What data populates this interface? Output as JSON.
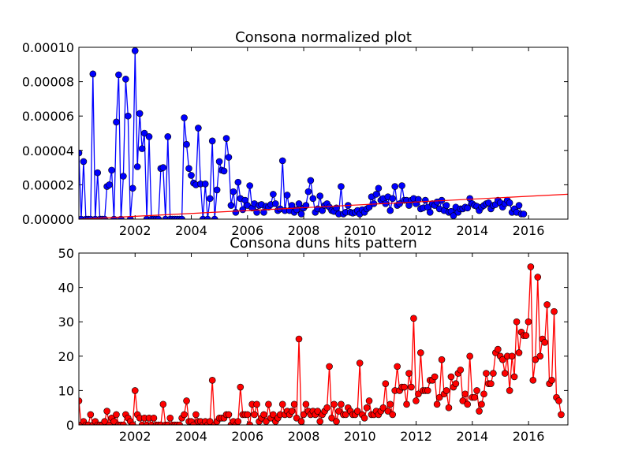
{
  "chart_data": [
    {
      "type": "line",
      "title": "Consona normalized plot",
      "xlabel": "",
      "ylabel": "",
      "xlim": [
        2000.0,
        2017.4
      ],
      "ylim": [
        0,
        0.0001
      ],
      "xticks": [
        2002,
        2004,
        2006,
        2008,
        2010,
        2012,
        2014,
        2016
      ],
      "x_tick_labels": [
        "2002",
        "2004",
        "2006",
        "2008",
        "2010",
        "2012",
        "2014",
        "2016"
      ],
      "yticks": [
        0,
        2e-05,
        4e-05,
        6e-05,
        8e-05,
        0.0001
      ],
      "y_tick_labels": [
        "0.00000",
        "0.00002",
        "0.00004",
        "0.00006",
        "0.00008",
        "0.00010"
      ],
      "series": [
        {
          "color": "#0000ff",
          "marker": "circle",
          "x_start": 2000.0,
          "step": 0.0833,
          "values": [
            3.85e-05,
            0,
            3.35e-05,
            0,
            0,
            0,
            8.45e-05,
            0,
            2.7e-05,
            0,
            0,
            0,
            1.9e-05,
            2e-05,
            2.85e-05,
            0,
            5.65e-05,
            8.4e-05,
            0,
            2.5e-05,
            8.15e-05,
            6e-05,
            0,
            1.8e-05,
            9.8e-05,
            3.05e-05,
            6.15e-05,
            4.1e-05,
            5e-05,
            0,
            4.8e-05,
            0,
            0,
            0,
            0,
            2.95e-05,
            3e-05,
            0,
            4.8e-05,
            0,
            0,
            0,
            0,
            0,
            0,
            5.9e-05,
            4.35e-05,
            2.95e-05,
            2.55e-05,
            2.1e-05,
            2e-05,
            5.3e-05,
            2.05e-05,
            0,
            2.05e-05,
            0,
            1.2e-05,
            4.55e-05,
            0,
            1.7e-05,
            3.35e-05,
            2.85e-05,
            2.8e-05,
            4.7e-05,
            3.6e-05,
            8e-06,
            1.6e-05,
            4e-06,
            2.15e-05,
            1.2e-05,
            5.5e-06,
            1.1e-05,
            8e-06,
            1.95e-05,
            6.5e-06,
            9e-06,
            4e-06,
            8e-06,
            8.5e-06,
            4e-06,
            7.5e-06,
            7e-06,
            8.5e-06,
            1.45e-05,
            9e-06,
            5e-06,
            6e-06,
            3.4e-05,
            5e-06,
            1.4e-05,
            5e-06,
            8e-06,
            4e-06,
            5.5e-06,
            9e-06,
            3e-06,
            6.5e-06,
            8e-06,
            1.6e-05,
            2.25e-05,
            1.2e-05,
            4e-06,
            6e-06,
            1.35e-05,
            5e-06,
            8e-06,
            9e-06,
            7e-06,
            5e-06,
            4.5e-06,
            6.5e-06,
            3e-06,
            1.9e-05,
            3e-06,
            4e-06,
            8e-06,
            4e-06,
            3.5e-06,
            4e-06,
            5e-06,
            3e-06,
            5.5e-06,
            4e-06,
            6e-06,
            7e-06,
            1.3e-05,
            9e-06,
            1.45e-05,
            1.8e-05,
            1.1e-05,
            1.2e-05,
            9e-06,
            1.3e-05,
            5e-06,
            1.2e-05,
            1.9e-05,
            8e-06,
            9e-06,
            1.95e-05,
            1.1e-05,
            1.1e-05,
            8e-06,
            1.1e-05,
            1.2e-05,
            9e-06,
            1.15e-05,
            6e-06,
            6.5e-06,
            1.1e-05,
            7e-06,
            4e-06,
            9e-06,
            8e-06,
            1e-05,
            6e-06,
            1.1e-05,
            5e-06,
            8e-06,
            4e-06,
            4.5e-06,
            2e-06,
            7e-06,
            4e-06,
            6e-06,
            6e-06,
            7e-06,
            6.5e-06,
            1.2e-05,
            9e-06,
            8e-06,
            7.5e-06,
            5e-06,
            7e-06,
            8e-06,
            9e-06,
            9.5e-06,
            6e-06,
            8e-06,
            8.5e-06,
            1.1e-05,
            9.5e-06,
            7e-06,
            9e-06,
            1.1e-05,
            9.5e-06,
            4e-06,
            6e-06,
            4e-06,
            8e-06,
            3e-06,
            3e-06
          ]
        }
      ],
      "trendline": {
        "color": "#ff0000",
        "x": [
          2000.0,
          2017.4
        ],
        "y": [
          0,
          1.45e-05
        ]
      }
    },
    {
      "type": "line",
      "title": "Consona duns hits pattern",
      "xlabel": "",
      "ylabel": "",
      "xlim": [
        2000.0,
        2017.4
      ],
      "ylim": [
        0,
        50
      ],
      "xticks": [
        2002,
        2004,
        2006,
        2008,
        2010,
        2012,
        2014,
        2016
      ],
      "x_tick_labels": [
        "2002",
        "2004",
        "2006",
        "2008",
        "2010",
        "2012",
        "2014",
        "2016"
      ],
      "yticks": [
        0,
        10,
        20,
        30,
        40,
        50
      ],
      "y_tick_labels": [
        "0",
        "10",
        "20",
        "30",
        "40",
        "50"
      ],
      "series": [
        {
          "color": "#ff0000",
          "marker": "circle",
          "x_start": 2000.0,
          "step": 0.0833,
          "values": [
            7,
            0,
            1,
            0,
            0,
            3,
            0,
            1,
            0,
            0,
            0,
            1,
            4,
            0,
            2,
            1,
            3,
            0,
            0,
            0,
            3,
            2,
            1,
            0,
            10,
            3,
            2,
            0,
            2,
            0,
            2,
            0,
            2,
            0,
            0,
            0,
            6,
            0,
            0,
            2,
            0,
            0,
            0,
            0,
            2,
            3,
            7,
            1,
            1,
            0,
            3,
            1,
            1,
            0,
            1,
            0,
            1,
            13,
            0,
            1,
            2,
            2,
            2,
            3,
            3,
            0,
            1,
            0,
            1,
            11,
            3,
            3,
            3,
            0,
            6,
            3,
            6,
            1,
            2,
            3,
            1,
            6,
            2,
            3,
            1,
            2,
            3,
            6,
            3,
            4,
            3,
            4,
            6,
            2,
            25,
            1,
            3,
            6,
            4,
            3,
            4,
            3,
            4,
            1,
            3,
            4,
            5,
            17,
            2,
            6,
            1,
            4,
            6,
            3,
            3,
            5,
            4,
            3,
            3,
            4,
            18,
            3,
            2,
            5,
            7,
            3,
            3,
            4,
            3,
            4,
            5,
            12,
            4,
            6,
            3,
            10,
            17,
            10,
            11,
            11,
            6,
            15,
            11,
            31,
            7,
            9,
            21,
            10,
            10,
            10,
            13,
            13,
            14,
            6,
            8,
            19,
            9,
            10,
            5,
            14,
            11,
            12,
            15,
            16,
            7,
            9,
            6,
            20,
            8,
            8,
            10,
            4,
            6,
            9,
            15,
            12,
            12,
            15,
            21,
            22,
            20,
            19,
            15,
            20,
            10,
            20,
            14,
            30,
            21,
            27,
            26,
            26,
            30,
            46,
            13,
            19,
            43,
            20,
            25,
            24,
            35,
            12,
            13,
            33,
            8,
            7,
            3
          ]
        }
      ]
    }
  ]
}
